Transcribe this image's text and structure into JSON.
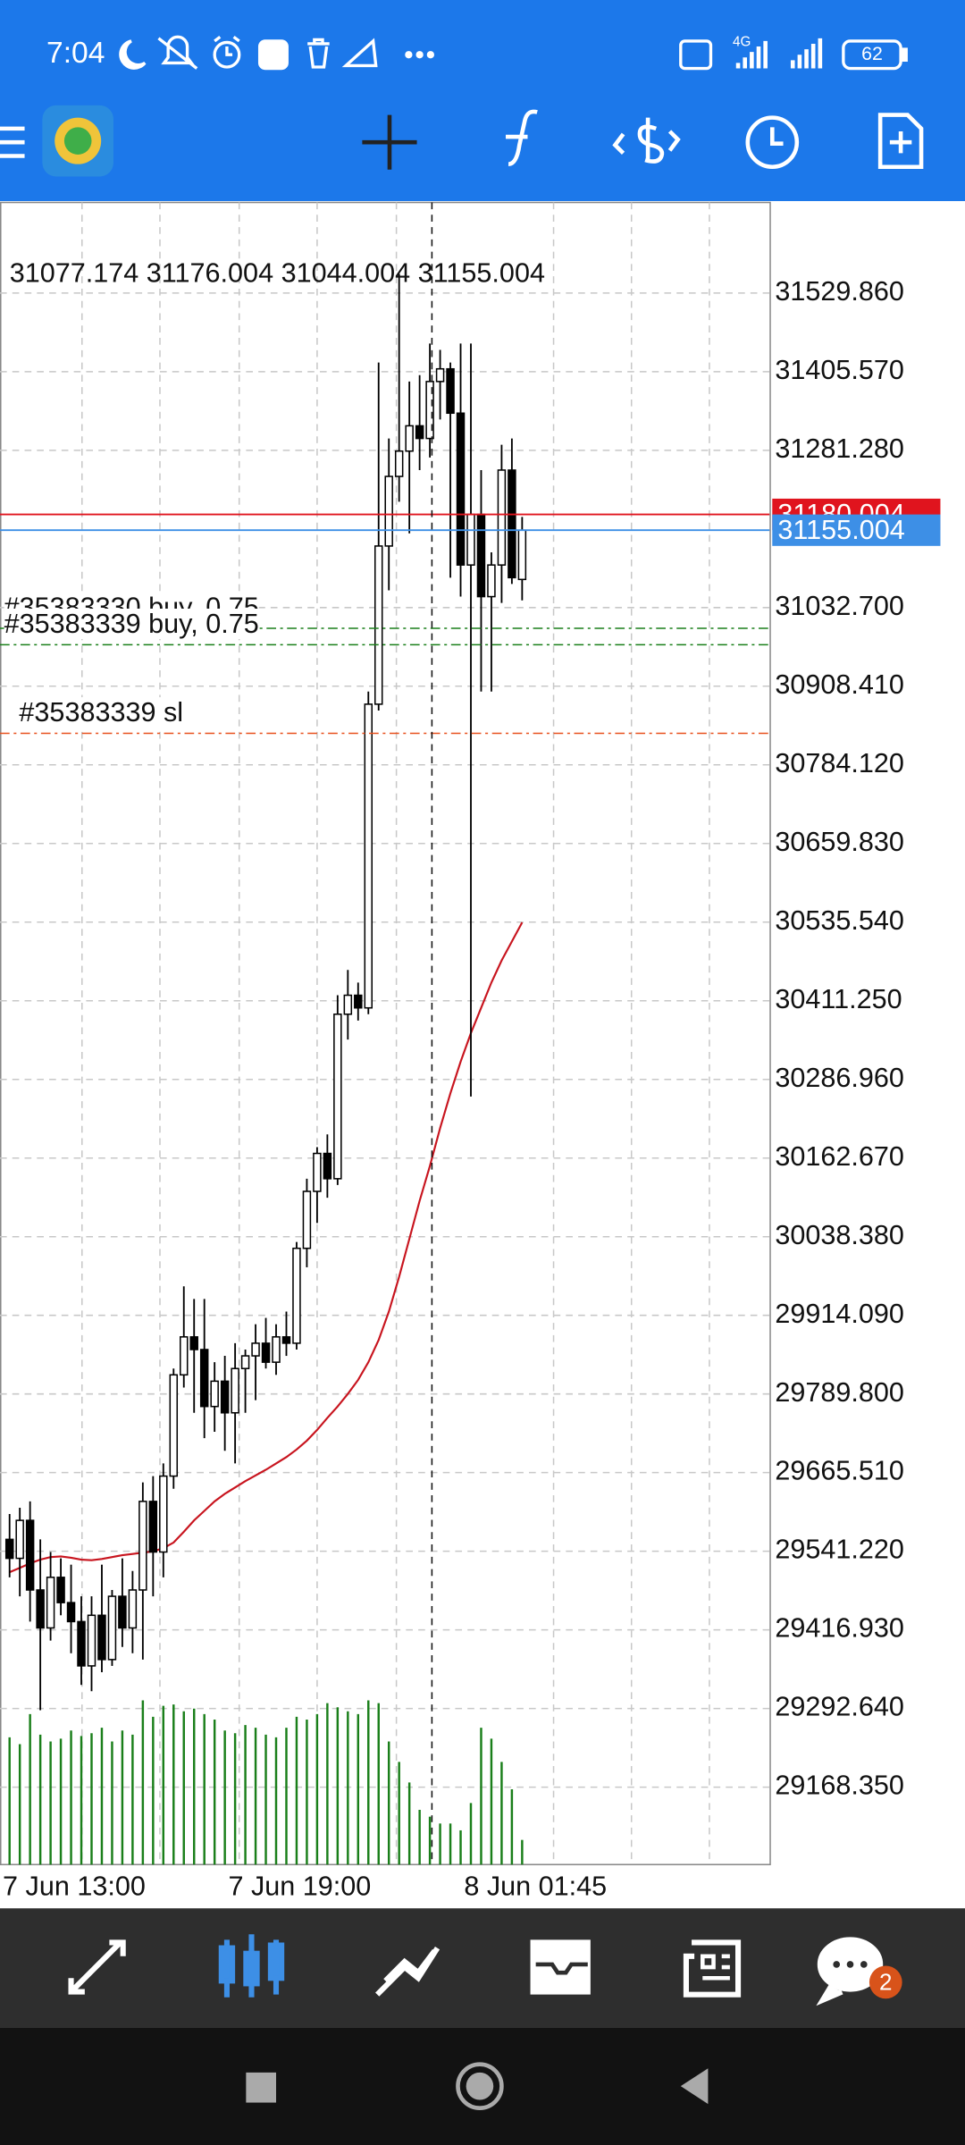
{
  "status_bar": {
    "time": "7:04",
    "network": "4G",
    "battery": "62"
  },
  "chart_data": {
    "type": "candlestick",
    "ohlc_label": "31077.174 31176.004 31044.004 31155.004",
    "categories": [
      "7 Jun 13:00",
      null,
      null,
      null,
      null,
      null,
      null,
      null,
      null,
      null,
      null,
      null,
      null,
      null,
      null,
      null,
      null,
      null,
      null,
      null,
      null,
      null,
      "7 Jun 19:00",
      null,
      null,
      null,
      null,
      null,
      null,
      null,
      null,
      null,
      null,
      null,
      null,
      null,
      null,
      null,
      null,
      null,
      null,
      null,
      null,
      null,
      null,
      "8 Jun 01:45",
      null,
      null,
      null,
      null,
      null
    ],
    "open": [
      29560,
      29530,
      29590,
      29480,
      29420,
      29500,
      29460,
      29430,
      29360,
      29440,
      29370,
      29470,
      29420,
      29480,
      29620,
      29540,
      29660,
      29820,
      29880,
      29860,
      29770,
      29810,
      29760,
      29830,
      29850,
      29870,
      29840,
      29880,
      29870,
      30020,
      30110,
      30170,
      30130,
      30390,
      30420,
      30400,
      30880,
      31130,
      31240,
      31280,
      31320,
      31300,
      31390,
      31410,
      31340,
      31100,
      31180,
      31050,
      31100,
      31250,
      31077.174
    ],
    "high": [
      29600,
      29610,
      29620,
      29560,
      29540,
      29530,
      29520,
      29470,
      29470,
      29520,
      29480,
      29530,
      29510,
      29650,
      29660,
      29680,
      29830,
      29960,
      29940,
      29940,
      29840,
      29850,
      29870,
      29860,
      29900,
      29910,
      29900,
      29920,
      30030,
      30130,
      30180,
      30200,
      30420,
      30460,
      30440,
      30900,
      31420,
      31300,
      31560,
      31390,
      31400,
      31450,
      31440,
      31420,
      31450,
      31450,
      31250,
      31120,
      31290,
      31300,
      31176.004
    ],
    "low": [
      29500,
      29470,
      29430,
      29290,
      29400,
      29440,
      29380,
      29330,
      29320,
      29350,
      29360,
      29390,
      29380,
      29370,
      29470,
      29500,
      29640,
      29800,
      29760,
      29720,
      29730,
      29700,
      29680,
      29760,
      29780,
      29830,
      29820,
      29850,
      29860,
      29990,
      30060,
      30100,
      30120,
      30350,
      30380,
      30390,
      30870,
      31060,
      31200,
      31150,
      31250,
      31270,
      31330,
      31080,
      31050,
      30260,
      30900,
      30900,
      31040,
      31070,
      31044.004
    ],
    "close": [
      29530,
      29590,
      29480,
      29420,
      29500,
      29460,
      29430,
      29360,
      29440,
      29370,
      29470,
      29420,
      29480,
      29620,
      29540,
      29660,
      29820,
      29880,
      29860,
      29770,
      29810,
      29760,
      29830,
      29850,
      29870,
      29840,
      29880,
      29870,
      30020,
      30110,
      30170,
      30130,
      30390,
      30420,
      30400,
      30880,
      31130,
      31240,
      31280,
      31320,
      31300,
      31390,
      31410,
      31340,
      31100,
      31180,
      31050,
      31100,
      31250,
      31080,
      31155.004
    ],
    "moving_average": {
      "color": "#c8141e",
      "values": [
        29508,
        29515,
        29522,
        29528,
        29532,
        29533,
        29531,
        29528,
        29527,
        29529,
        29532,
        29535,
        29537,
        29539,
        29541,
        29546,
        29555,
        29572,
        29590,
        29605,
        29620,
        29632,
        29642,
        29652,
        29661,
        29670,
        29680,
        29690,
        29702,
        29716,
        29733,
        29752,
        29770,
        29790,
        29812,
        29840,
        29875,
        29920,
        29975,
        30035,
        30095,
        30150,
        30210,
        30265,
        30315,
        30360,
        30400,
        30440,
        30475,
        30505,
        30535
      ]
    },
    "volumes": {
      "color": "#1a7f1a",
      "values": [
        93,
        88,
        110,
        95,
        90,
        92,
        98,
        94,
        96,
        100,
        90,
        98,
        95,
        120,
        108,
        116,
        117,
        112,
        114,
        110,
        106,
        98,
        96,
        102,
        100,
        95,
        93,
        100,
        108,
        106,
        110,
        118,
        115,
        112,
        110,
        120,
        118,
        90,
        75,
        60,
        40,
        35,
        30,
        30,
        25,
        45,
        100,
        92,
        75,
        55,
        18
      ]
    },
    "ylim": [
      29046,
      31673
    ],
    "yticks": [
      {
        "value": 31529.86,
        "label": "31529.860"
      },
      {
        "value": 31405.57,
        "label": "31405.570"
      },
      {
        "value": 31281.28,
        "label": "31281.280"
      },
      {
        "value": 31032.7,
        "label": "31032.700"
      },
      {
        "value": 30908.41,
        "label": "30908.410"
      },
      {
        "value": 30784.12,
        "label": "30784.120"
      },
      {
        "value": 30659.83,
        "label": "30659.830"
      },
      {
        "value": 30535.54,
        "label": "30535.540"
      },
      {
        "value": 30411.25,
        "label": "30411.250"
      },
      {
        "value": 30286.96,
        "label": "30286.960"
      },
      {
        "value": 30162.67,
        "label": "30162.670"
      },
      {
        "value": 30038.38,
        "label": "30038.380"
      },
      {
        "value": 29914.09,
        "label": "29914.090"
      },
      {
        "value": 29789.8,
        "label": "29789.800"
      },
      {
        "value": 29665.51,
        "label": "29665.510"
      },
      {
        "value": 29541.22,
        "label": "29541.220"
      },
      {
        "value": 29416.93,
        "label": "29416.930"
      },
      {
        "value": 29292.64,
        "label": "29292.640"
      },
      {
        "value": 29168.35,
        "label": "29168.350"
      }
    ],
    "price_lines": [
      {
        "value": 31180.004,
        "label": "31180.004",
        "color": "#e0141e"
      },
      {
        "value": 31155.004,
        "label": "31155.004",
        "color": "#3d8fe6"
      }
    ],
    "orders": [
      {
        "label": "#35383330 buy, 0.75",
        "value": 31000,
        "color": "#1a7f1a"
      },
      {
        "label": "#35383339 buy, 0.75",
        "value": 30974,
        "color": "#1a7f1a"
      },
      {
        "label": "#35383339 sl",
        "value": 30834,
        "color": "#e8501e"
      }
    ],
    "grid": true
  },
  "bottom_nav": {
    "badge": "2"
  }
}
